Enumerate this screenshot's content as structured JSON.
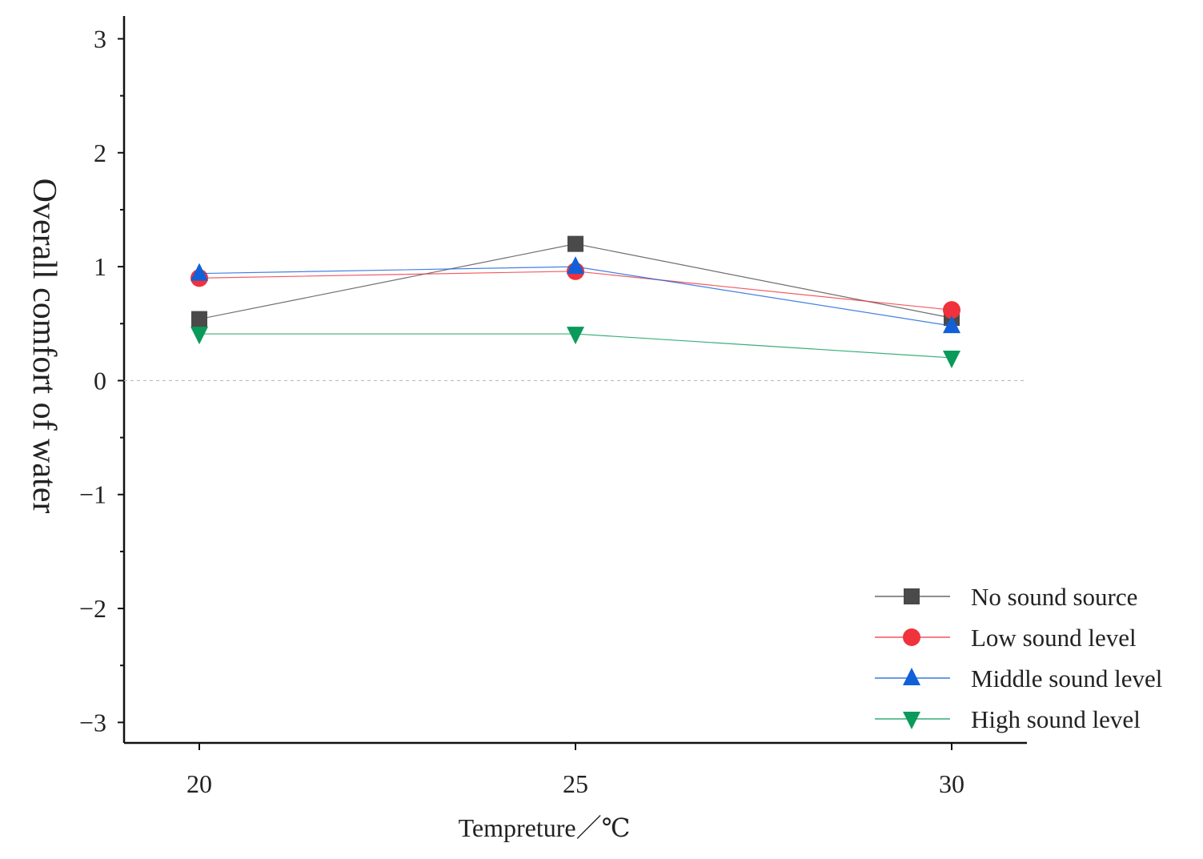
{
  "chart_data": {
    "type": "line",
    "xlabel": "Tempreture／℃",
    "ylabel": "Overall comfort of water",
    "x": [
      20,
      25,
      30
    ],
    "xticks": [
      "20",
      "25",
      "30"
    ],
    "yticks": [
      "3",
      "2",
      "1",
      "0",
      "−1",
      "−2",
      "−3"
    ],
    "xlim": [
      19,
      31
    ],
    "ylim": [
      -3.18,
      3.2
    ],
    "reference_line_y": 0,
    "grid": false,
    "legend_position": "bottom-right",
    "series": [
      {
        "name": "No sound source",
        "values": [
          0.54,
          1.2,
          0.55
        ],
        "color": "#4a4a4a",
        "marker": "square"
      },
      {
        "name": "Low sound level",
        "values": [
          0.9,
          0.96,
          0.62
        ],
        "color": "#f0323c",
        "marker": "circle"
      },
      {
        "name": "Middle sound level",
        "values": [
          0.94,
          1.0,
          0.48
        ],
        "color": "#1260d8",
        "marker": "triangle-up"
      },
      {
        "name": "High sound level",
        "values": [
          0.41,
          0.41,
          0.2
        ],
        "color": "#0a9a5a",
        "marker": "triangle-down"
      }
    ]
  }
}
